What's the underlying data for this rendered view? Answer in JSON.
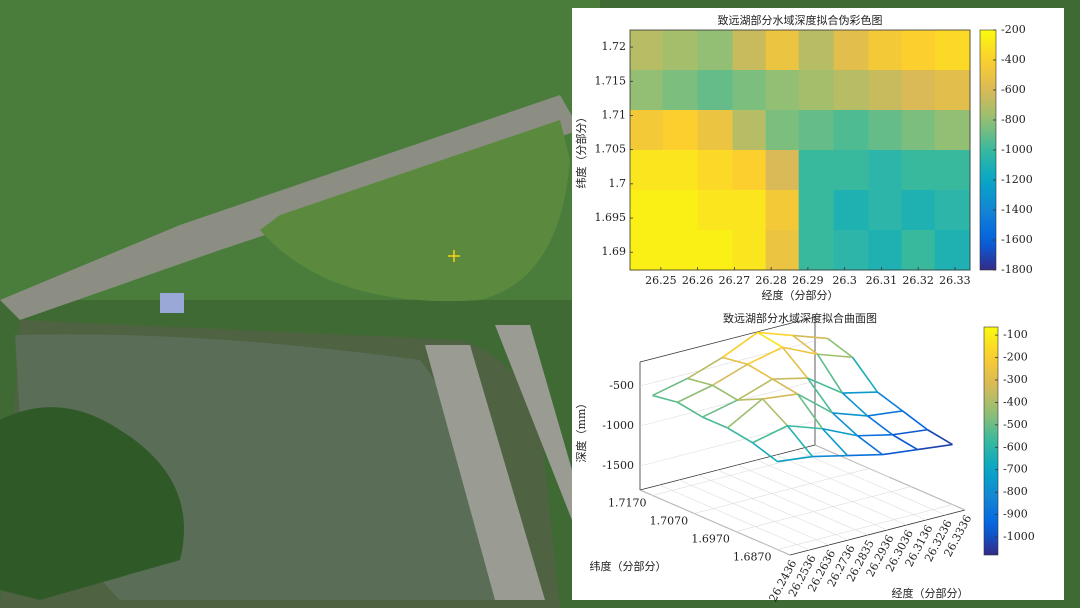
{
  "chart_data": [
    {
      "type": "heatmap",
      "title": "致远湖部分水域深度拟合伪彩色图",
      "xlabel": "经度（分部分）",
      "ylabel": "纬度（分部分）",
      "colormap": "parula",
      "x": [
        26.246,
        26.255,
        26.265,
        26.274,
        26.283,
        26.292,
        26.302,
        26.311,
        26.32,
        26.329
      ],
      "y": [
        1.7196,
        1.7137,
        1.7079,
        1.702,
        1.6962,
        1.6903
      ],
      "z": [
        [
          -700,
          -750,
          -800,
          -650,
          -500,
          -700,
          -550,
          -450,
          -400,
          -350
        ],
        [
          -800,
          -850,
          -900,
          -850,
          -800,
          -750,
          -700,
          -650,
          -600,
          -550
        ],
        [
          -450,
          -400,
          -500,
          -700,
          -850,
          -900,
          -950,
          -900,
          -850,
          -800
        ],
        [
          -300,
          -300,
          -350,
          -400,
          -600,
          -1000,
          -1000,
          -1050,
          -1000,
          -1000
        ],
        [
          -250,
          -250,
          -300,
          -300,
          -450,
          -1000,
          -1100,
          -1050,
          -1100,
          -1050
        ],
        [
          -250,
          -250,
          -250,
          -300,
          -500,
          -1000,
          -1050,
          -1100,
          -1000,
          -1100
        ]
      ],
      "xlim": [
        26.2416,
        26.3341
      ],
      "xticks": [
        26.25,
        26.26,
        26.27,
        26.28,
        26.29,
        26.3,
        26.31,
        26.32,
        26.33
      ],
      "ylim": [
        1.6874,
        1.7225
      ],
      "yticks": [
        1.69,
        1.695,
        1.7,
        1.705,
        1.71,
        1.715,
        1.72
      ],
      "clim": [
        -1800,
        -200
      ],
      "cticks": [
        -200,
        -400,
        -600,
        -800,
        -1000,
        -1200,
        -1400,
        -1600,
        -1800
      ]
    },
    {
      "type": "surface3d",
      "title": "致远湖部分水域深度拟合曲面图",
      "xlabel": "经度（分部分）",
      "ylabel": "纬度（分部分）",
      "zlabel": "深度（mm）",
      "colormap": "parula",
      "x": [
        26.2436,
        26.2616,
        26.2796,
        26.2976,
        26.3156,
        26.3336
      ],
      "y": [
        1.687,
        1.693,
        1.699,
        1.705,
        1.711,
        1.717
      ],
      "z": [
        [
          -700,
          -750,
          -850,
          -950,
          -1000,
          -1050
        ],
        [
          -600,
          -500,
          -650,
          -850,
          -950,
          -1000
        ],
        [
          -550,
          -300,
          -350,
          -700,
          -850,
          -900
        ],
        [
          -550,
          -450,
          -300,
          -400,
          -700,
          -800
        ],
        [
          -500,
          -400,
          -250,
          -150,
          -350,
          -500
        ],
        [
          -550,
          -450,
          -300,
          -100,
          -250,
          -400
        ]
      ],
      "xlim": [
        26.2436,
        26.3336
      ],
      "xticks": [
        26.2436,
        26.2536,
        26.2636,
        26.2736,
        26.2835,
        26.2936,
        26.3036,
        26.3136,
        26.3236,
        26.3336
      ],
      "ylim": [
        1.684,
        1.72
      ],
      "yticks": [
        {
          "value": 1.717,
          "label": "1.7170"
        },
        {
          "value": 1.707,
          "label": "1.7070"
        },
        {
          "value": 1.697,
          "label": "1.6970"
        },
        {
          "value": 1.687,
          "label": "1.6870"
        }
      ],
      "zlim": [
        -1800,
        -200
      ],
      "zticks": [
        -500,
        -1000,
        -1500
      ],
      "clim": [
        -1080,
        -64
      ],
      "cticks": [
        -100,
        -200,
        -300,
        -400,
        -500,
        -600,
        -700,
        -800,
        -900,
        -1000
      ]
    }
  ]
}
